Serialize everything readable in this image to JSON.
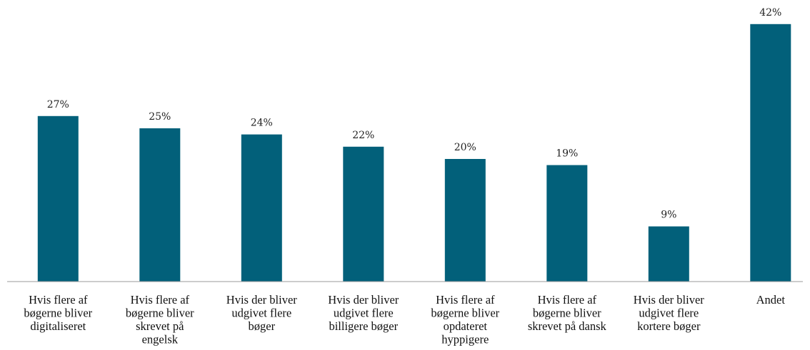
{
  "chart_data": {
    "type": "bar",
    "title": "",
    "xlabel": "",
    "ylabel": "",
    "ylim": [
      0,
      44
    ],
    "grid": false,
    "legend": "none",
    "bar_color": "#02607a",
    "categories": [
      [
        "Hvis flere af",
        "bøgerne bliver",
        "digitaliseret"
      ],
      [
        "Hvis flere af",
        "bøgerne bliver",
        "skrevet på",
        "engelsk"
      ],
      [
        "Hvis der bliver",
        "udgivet flere",
        "bøger"
      ],
      [
        "Hvis der bliver",
        "udgivet flere",
        "billigere bøger"
      ],
      [
        "Hvis flere af",
        "bøgerne bliver",
        "opdateret",
        "hyppigere"
      ],
      [
        "Hvis flere af",
        "bøgerne bliver",
        "skrevet på dansk"
      ],
      [
        "Hvis der bliver",
        "udgivet flere",
        "kortere bøger"
      ],
      [
        "Andet"
      ]
    ],
    "values": [
      27,
      25,
      24,
      22,
      20,
      19,
      9,
      42
    ],
    "value_labels": [
      "27%",
      "25%",
      "24%",
      "22%",
      "20%",
      "19%",
      "9%",
      "42%"
    ]
  }
}
